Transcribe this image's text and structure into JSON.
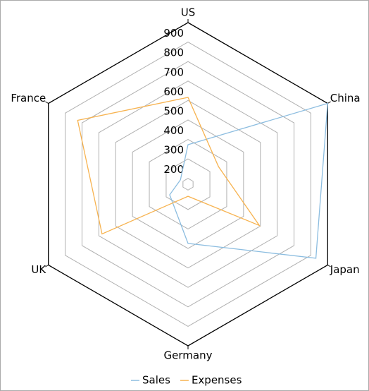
{
  "chart_data": {
    "type": "radar",
    "categories": [
      "US",
      "China",
      "Japan",
      "Germany",
      "UK",
      "France"
    ],
    "series": [
      {
        "name": "Sales",
        "color": "#8cbde0",
        "values": [
          373,
          1000,
          930,
          474,
          279,
          215
        ]
      },
      {
        "name": "Expenses",
        "color": "#f7b350",
        "values": [
          616,
          351,
          594,
          232,
          681,
          826
        ]
      }
    ],
    "ylim": [
      170,
      1000
    ],
    "yticks": [
      200,
      300,
      400,
      500,
      600,
      700,
      800,
      900
    ],
    "grid": true,
    "legend": "bottom"
  }
}
